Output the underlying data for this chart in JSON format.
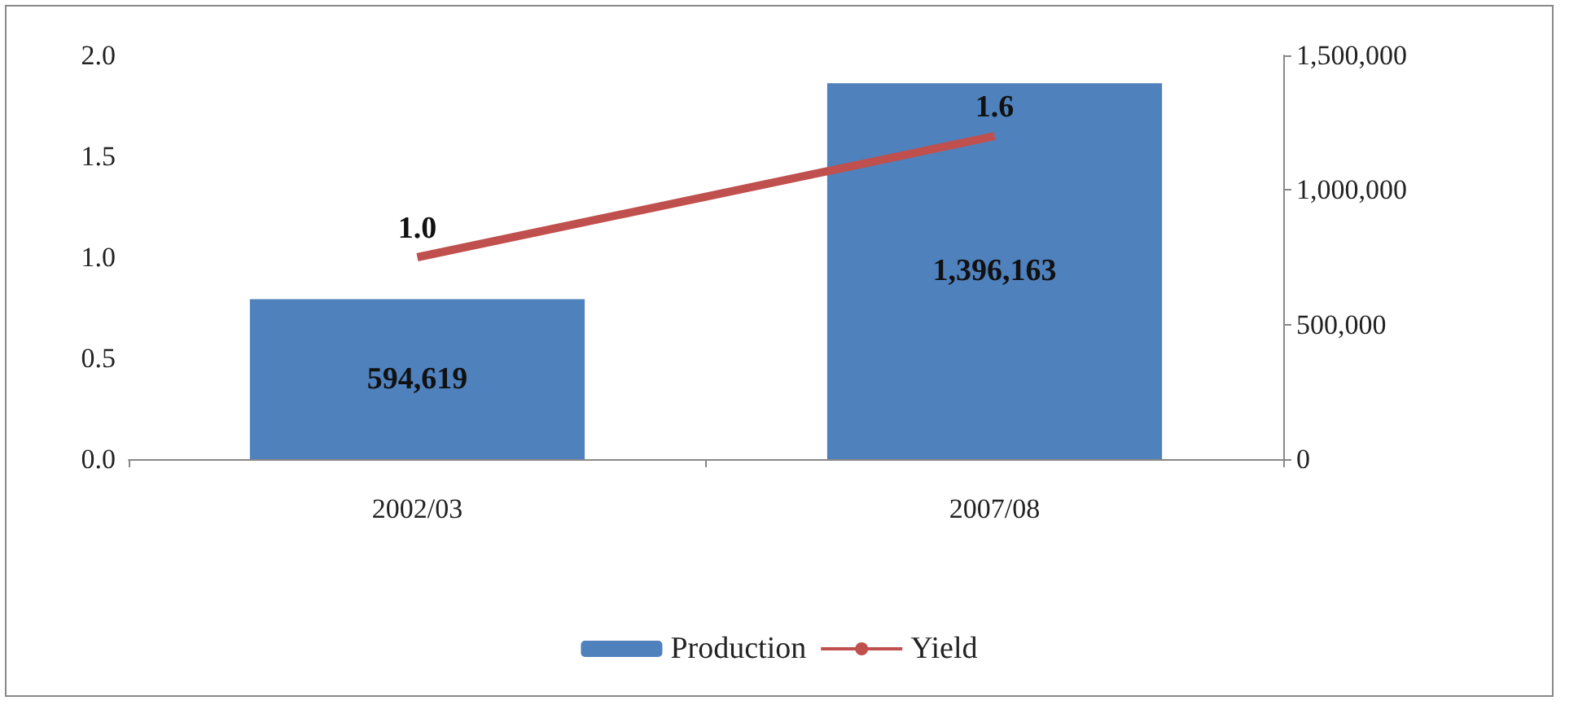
{
  "chart_data": {
    "type": "bar",
    "categories": [
      "2002/03",
      "2007/08"
    ],
    "series": [
      {
        "name": "Production",
        "color": "#4f81bd",
        "axis": "y2",
        "values": [
          594619,
          1396163
        ],
        "value_labels": [
          "594,619",
          "1,396,163"
        ]
      },
      {
        "name": "Yield",
        "type": "line",
        "color": "#c0504d",
        "values": [
          1.0,
          1.6
        ],
        "value_labels": [
          "1.0",
          "1.6"
        ],
        "marker": "none"
      }
    ],
    "ylim": [
      0,
      2
    ],
    "yticks": [
      {
        "value": 0,
        "label": "0.0"
      },
      {
        "value": 0.5,
        "label": "0.5"
      },
      {
        "value": 1,
        "label": "1.0"
      },
      {
        "value": 1.5,
        "label": "1.5"
      },
      {
        "value": 2,
        "label": "2.0"
      }
    ],
    "y2lim": [
      0,
      1500000
    ],
    "y2ticks": [
      0,
      {
        "value": 500000,
        "label": "500,000"
      },
      {
        "value": 1000000,
        "label": "1,000,000"
      },
      {
        "value": 1500000,
        "label": "1,500,000"
      }
    ],
    "grid": false,
    "legend": "bottom"
  }
}
